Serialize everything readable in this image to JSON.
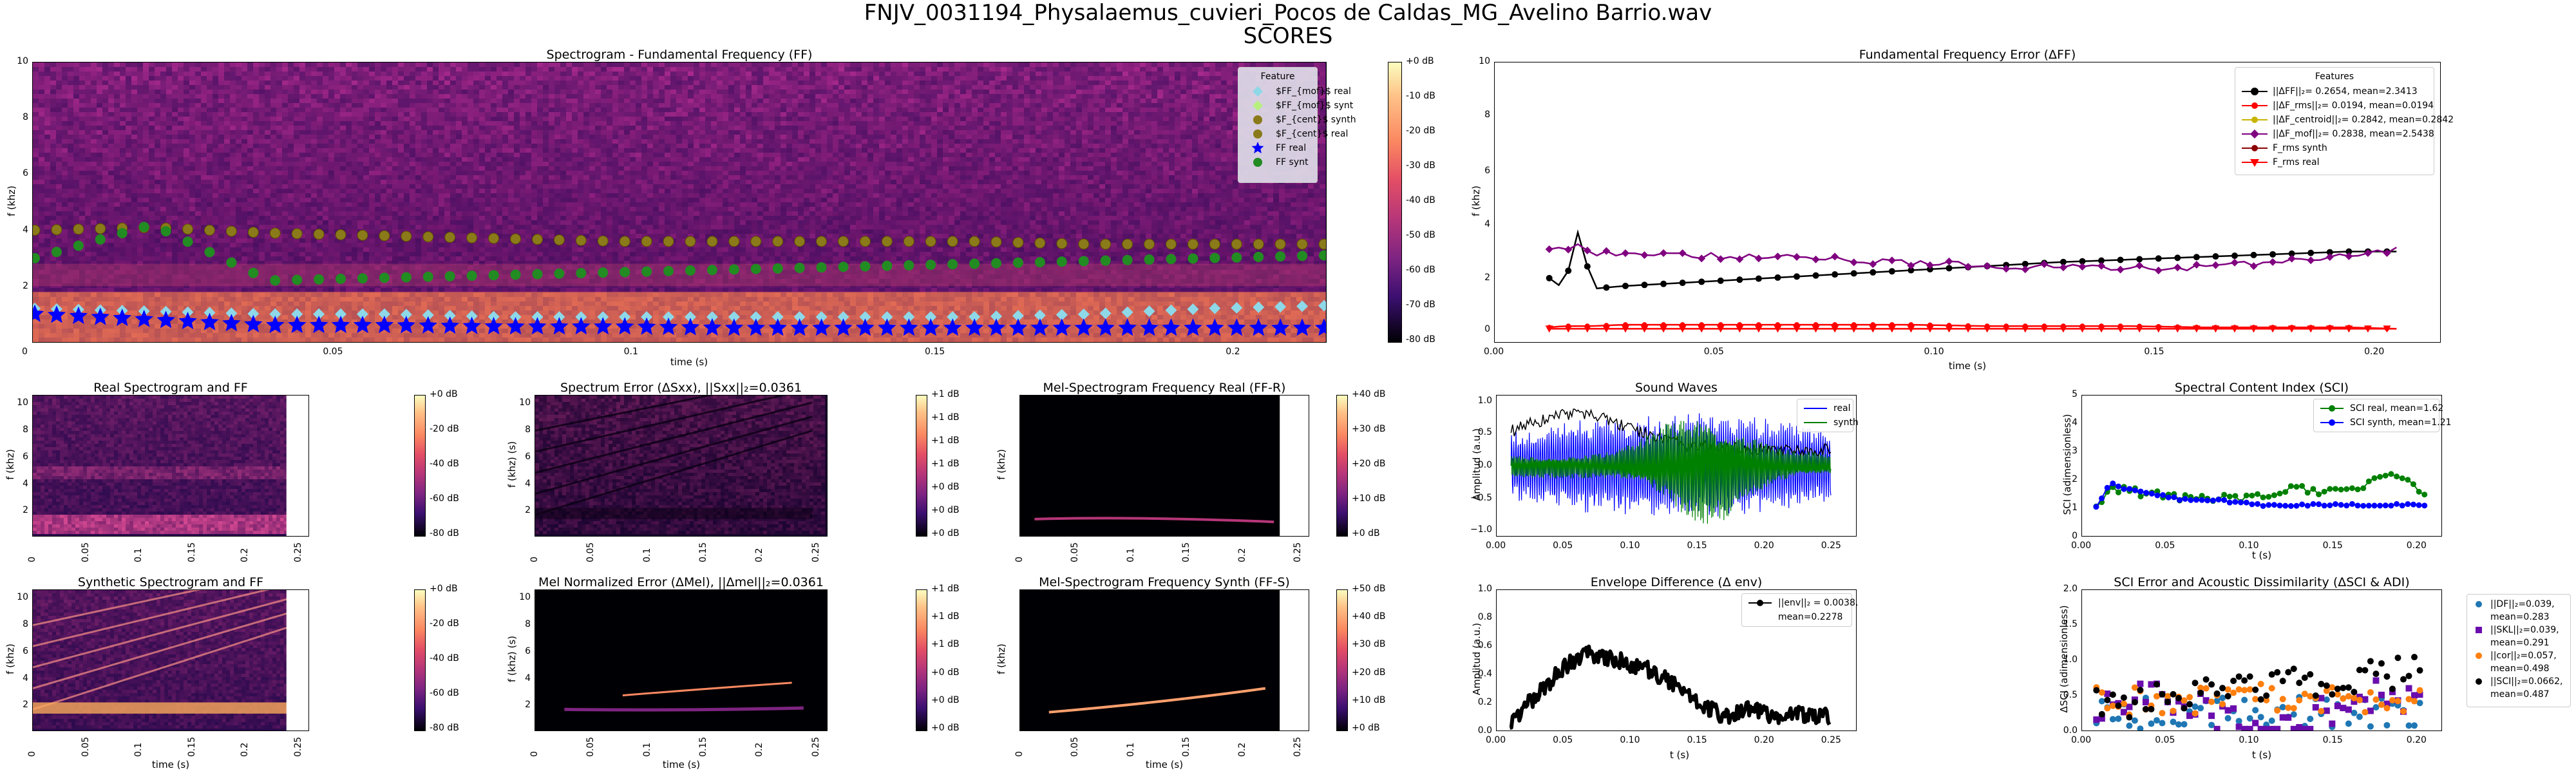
{
  "suptitle": {
    "line1": "FNJV_0031194_Physalaemus_cuvieri_Pocos de Caldas_MG_Avelino Barrio.wav",
    "line2": "SCORES"
  },
  "panels": {
    "spec_ff": {
      "title": "Spectrogram - Fundamental Frequency (FF)",
      "xlabel": "time (s)",
      "ylabel": "f (khz)",
      "xticks": [
        "0",
        "0.05",
        "0.1",
        "0.15",
        "0.2"
      ],
      "yticks": [
        "2",
        "4",
        "6",
        "8",
        "10"
      ],
      "cbar_ticks": [
        "+0 dB",
        "-10 dB",
        "-20 dB",
        "-30 dB",
        "-40 dB",
        "-50 dB",
        "-60 dB",
        "-70 dB",
        "-80 dB"
      ],
      "legend_title": "Feature",
      "legend": [
        "$FF_{mof}$ real",
        "$FF_{mof}$ synt",
        "$F_{cent}$ synth",
        "$F_{cent}$ real",
        "FF real",
        "FF synt"
      ]
    },
    "ff_error": {
      "title": "Fundamental Frequency Error (ΔFF)",
      "xlabel": "time (s)",
      "ylabel": "f (khz)",
      "xticks": [
        "0.00",
        "0.05",
        "0.10",
        "0.15",
        "0.20"
      ],
      "yticks": [
        "0",
        "2",
        "4",
        "6",
        "8",
        "10"
      ],
      "legend_title": "Features",
      "legend": [
        "||ΔFF||₂= 0.2654, mean=2.3413",
        "||ΔF_rms||₂= 0.0194, mean=0.0194",
        "||ΔF_centroid||₂= 0.2842, mean=0.2842",
        "||ΔF_mof||₂= 0.2838, mean=2.5438",
        "F_rms synth",
        "F_rms real"
      ]
    },
    "real_spec": {
      "title": "Real Spectrogram and FF",
      "ylabel": "f (khz)",
      "xticks": [
        "0",
        "0.05",
        "0.1",
        "0.15",
        "0.2",
        "0.25"
      ],
      "yticks": [
        "2",
        "4",
        "6",
        "8",
        "10"
      ],
      "cbar_ticks": [
        "+0 dB",
        "-20 dB",
        "-40 dB",
        "-60 dB",
        "-80 dB"
      ]
    },
    "spec_err": {
      "title": "Spectrum Error (ΔSxx), ||Sxx||₂=0.0361",
      "ylabel": "f (khz) (s)",
      "xticks": [
        "0",
        "0.05",
        "0.1",
        "0.15",
        "0.2",
        "0.25"
      ],
      "yticks": [
        "2",
        "4",
        "6",
        "8",
        "10"
      ],
      "cbar_ticks": [
        "+1 dB",
        "+1 dB",
        "+1 dB",
        "+1 dB",
        "+0 dB",
        "+0 dB",
        "+0 dB"
      ]
    },
    "mel_real": {
      "title": "Mel-Spectrogram Frequency Real (FF-R)",
      "ylabel": "f (khz)",
      "xticks": [
        "0",
        "0.05",
        "0.1",
        "0.15",
        "0.2",
        "0.25"
      ],
      "cbar_ticks": [
        "+40 dB",
        "+30 dB",
        "+20 dB",
        "+10 dB",
        "+0 dB"
      ]
    },
    "sound": {
      "title": "Sound Waves",
      "ylabel": "Amplitud (a.u.)",
      "xticks": [
        "0.00",
        "0.05",
        "0.10",
        "0.15",
        "0.20",
        "0.25"
      ],
      "yticks": [
        "−1.0",
        "−0.5",
        "0.0",
        "0.5",
        "1.0"
      ],
      "legend": [
        "real",
        "synth"
      ]
    },
    "sci": {
      "title": "Spectral Content Index (SCI)",
      "xlabel": "t (s)",
      "ylabel": "SCI (adimensionless)",
      "xticks": [
        "0.00",
        "0.05",
        "0.10",
        "0.15",
        "0.20"
      ],
      "yticks": [
        "0",
        "1",
        "2",
        "3",
        "4",
        "5"
      ],
      "legend": [
        "SCI real,   mean=1.62",
        "SCI synth, mean=1.21"
      ]
    },
    "synth_spec": {
      "title": "Synthetic Spectrogram and FF",
      "xlabel": "time (s)",
      "ylabel": "f (khz)",
      "xticks": [
        "0",
        "0.05",
        "0.1",
        "0.15",
        "0.2",
        "0.25"
      ],
      "yticks": [
        "2",
        "4",
        "6",
        "8",
        "10"
      ],
      "cbar_ticks": [
        "+0 dB",
        "-20 dB",
        "-40 dB",
        "-60 dB",
        "-80 dB"
      ]
    },
    "mel_err": {
      "title": "Mel Normalized Error (ΔMel), ||Δmel||₂=0.0361",
      "xlabel": "time (s)",
      "ylabel": "f (khz) (s)",
      "xticks": [
        "0",
        "0.05",
        "0.1",
        "0.15",
        "0.2",
        "0.25"
      ],
      "yticks": [
        "2",
        "4",
        "6",
        "8",
        "10"
      ],
      "cbar_ticks": [
        "+1 dB",
        "+1 dB",
        "+1 dB",
        "+0 dB",
        "+0 dB",
        "+0 dB"
      ]
    },
    "mel_synth": {
      "title": "Mel-Spectrogram Frequency Synth (FF-S)",
      "xlabel": "time (s)",
      "ylabel": "f (khz)",
      "xticks": [
        "0",
        "0.05",
        "0.1",
        "0.15",
        "0.2",
        "0.25"
      ],
      "cbar_ticks": [
        "+50 dB",
        "+40 dB",
        "+30 dB",
        "+20 dB",
        "+10 dB",
        "+0 dB"
      ]
    },
    "env": {
      "title": "Envelope Difference (Δ env)",
      "xlabel": "t (s)",
      "ylabel": "Amplitud (a.u.)",
      "xticks": [
        "0.00",
        "0.05",
        "0.10",
        "0.15",
        "0.20",
        "0.25"
      ],
      "yticks": [
        "0.0",
        "0.2",
        "0.4",
        "0.6",
        "0.8",
        "1.0"
      ],
      "legend": [
        "||env||₂ = 0.0038,",
        "mean=0.2278"
      ]
    },
    "sci_err": {
      "title": "SCI Error and Acoustic Dissimilarity (ΔSCI & ADI)",
      "xlabel": "t (s)",
      "ylabel": "ΔSCI (adimensionless)",
      "xticks": [
        "0.00",
        "0.05",
        "0.10",
        "0.15",
        "0.20"
      ],
      "yticks": [
        "0.0",
        "0.5",
        "1.0",
        "1.5",
        "2.0"
      ],
      "legend": [
        [
          "||DF||₂=0.039,",
          "mean=0.283"
        ],
        [
          "||SKL||₂=0.039,",
          "mean=0.291"
        ],
        [
          "||cor||₂=0.057,",
          "mean=0.498"
        ],
        [
          "||SCI||₂=0.0662,",
          "mean=0.487"
        ]
      ]
    }
  },
  "colors": {
    "ff_real": "#0000ff",
    "ff_synt": "#228b22",
    "ff_mof_real": "#8ed8e8",
    "ff_mof_synt": "#b8f080",
    "fcent": "#8b7a1a",
    "err_ff": "#000000",
    "err_rms": "#ff0000",
    "err_cent": "#c8b400",
    "err_mof": "#800080",
    "wave_real": "#0000ff",
    "wave_synth": "#008000",
    "adi_df": "#1f77b4",
    "adi_skl": "#6a0dad",
    "adi_cor": "#ff7f0e",
    "adi_sci": "#000000"
  },
  "chart_data": [
    {
      "type": "heatmap",
      "title": "Spectrogram - Fundamental Frequency (FF)",
      "xlabel": "time (s)",
      "ylabel": "f (khz)",
      "xlim": [
        0,
        0.233
      ],
      "ylim": [
        0,
        10
      ],
      "series": [
        {
          "name": "FF real",
          "x_range": [
            0,
            0.233
          ],
          "y": [
            1.0,
            0.8,
            0.6,
            0.6,
            0.55,
            0.55,
            0.5,
            0.5,
            0.5,
            0.5,
            0.5,
            0.5
          ]
        },
        {
          "name": "FF synt",
          "x_range": [
            0,
            0.233
          ],
          "y": [
            3.0,
            4.2,
            2.2,
            2.3,
            2.4,
            2.5,
            2.6,
            2.7,
            2.8,
            2.9,
            3.0,
            3.1
          ]
        },
        {
          "name": "$F_{cent}$ synth",
          "x_range": [
            0,
            0.233
          ],
          "y": [
            4.0,
            4.1,
            3.9,
            3.8,
            3.7,
            3.6,
            3.6,
            3.6,
            3.6,
            3.5,
            3.5,
            3.5
          ]
        },
        {
          "name": "$FF_{mof}$ real",
          "x_range": [
            0,
            0.233
          ],
          "y": [
            1.2,
            1.1,
            1.0,
            1.0,
            0.9,
            0.9,
            0.9,
            0.9,
            0.9,
            1.0,
            1.2,
            1.3
          ]
        }
      ]
    },
    {
      "type": "line",
      "title": "Fundamental Frequency Error (ΔFF)",
      "xlabel": "time (s)",
      "ylabel": "f (khz)",
      "xlim": [
        -0.015,
        0.245
      ],
      "ylim": [
        -0.5,
        10
      ],
      "x": [
        0.0,
        0.004,
        0.008,
        0.012,
        0.02,
        0.04,
        0.06,
        0.08,
        0.1,
        0.12,
        0.14,
        0.16,
        0.18,
        0.2,
        0.22,
        0.233
      ],
      "series": [
        {
          "name": "||ΔFF||₂= 0.2654, mean=2.3413",
          "values": [
            1.9,
            1.5,
            3.7,
            1.5,
            1.6,
            1.75,
            1.9,
            2.05,
            2.2,
            2.35,
            2.5,
            2.6,
            2.7,
            2.8,
            2.9,
            2.9
          ]
        },
        {
          "name": "||ΔF_mof||₂= 0.2838, mean=2.5438",
          "values": [
            3.0,
            2.9,
            3.1,
            2.8,
            2.8,
            2.75,
            2.7,
            2.6,
            2.45,
            2.4,
            2.3,
            2.25,
            2.3,
            2.5,
            2.7,
            3.0
          ]
        },
        {
          "name": "||ΔF_rms||₂= 0.0194, mean=0.0194",
          "values": [
            0.05,
            0.1,
            0.1,
            0.1,
            0.15,
            0.15,
            0.15,
            0.15,
            0.15,
            0.1,
            0.1,
            0.1,
            0.05,
            0.05,
            0.05,
            0.0
          ]
        },
        {
          "name": "F_rms real",
          "values": [
            0.0,
            0.0,
            0.0,
            0.0,
            0.0,
            0.0,
            0.0,
            0.0,
            0.0,
            0.0,
            0.0,
            0.0,
            0.0,
            0.0,
            0.0,
            0.0
          ]
        }
      ]
    },
    {
      "type": "line",
      "title": "Spectral Content Index (SCI)",
      "xlabel": "t (s)",
      "ylabel": "SCI (adimensionless)",
      "xlim": [
        -0.01,
        0.245
      ],
      "ylim": [
        0,
        5
      ],
      "x": [
        0.0,
        0.01,
        0.02,
        0.04,
        0.06,
        0.08,
        0.1,
        0.12,
        0.14,
        0.16,
        0.18,
        0.2,
        0.21,
        0.22,
        0.233
      ],
      "series": [
        {
          "name": "SCI real,   mean=1.62",
          "values": [
            1.0,
            1.8,
            1.6,
            1.5,
            1.3,
            1.4,
            1.3,
            1.5,
            1.7,
            1.6,
            1.7,
            2.0,
            2.2,
            1.9,
            1.5
          ]
        },
        {
          "name": "SCI synth, mean=1.21",
          "values": [
            1.0,
            1.9,
            1.7,
            1.5,
            1.3,
            1.3,
            1.2,
            1.1,
            1.1,
            1.1,
            1.1,
            1.1,
            1.1,
            1.1,
            1.1
          ]
        }
      ]
    },
    {
      "type": "line",
      "title": "Envelope Difference (Δ env)",
      "xlabel": "t (s)",
      "ylabel": "Amplitud (a.u.)",
      "xlim": [
        -0.01,
        0.26
      ],
      "ylim": [
        0,
        1
      ],
      "x": [
        0.0,
        0.02,
        0.04,
        0.06,
        0.08,
        0.1,
        0.12,
        0.14,
        0.16,
        0.18,
        0.2,
        0.22,
        0.24
      ],
      "series": [
        {
          "name": "||env||₂ = 0.0038, mean=0.2278",
          "values": [
            0.05,
            0.25,
            0.45,
            0.55,
            0.5,
            0.45,
            0.35,
            0.2,
            0.1,
            0.15,
            0.1,
            0.12,
            0.1
          ]
        }
      ]
    }
  ]
}
